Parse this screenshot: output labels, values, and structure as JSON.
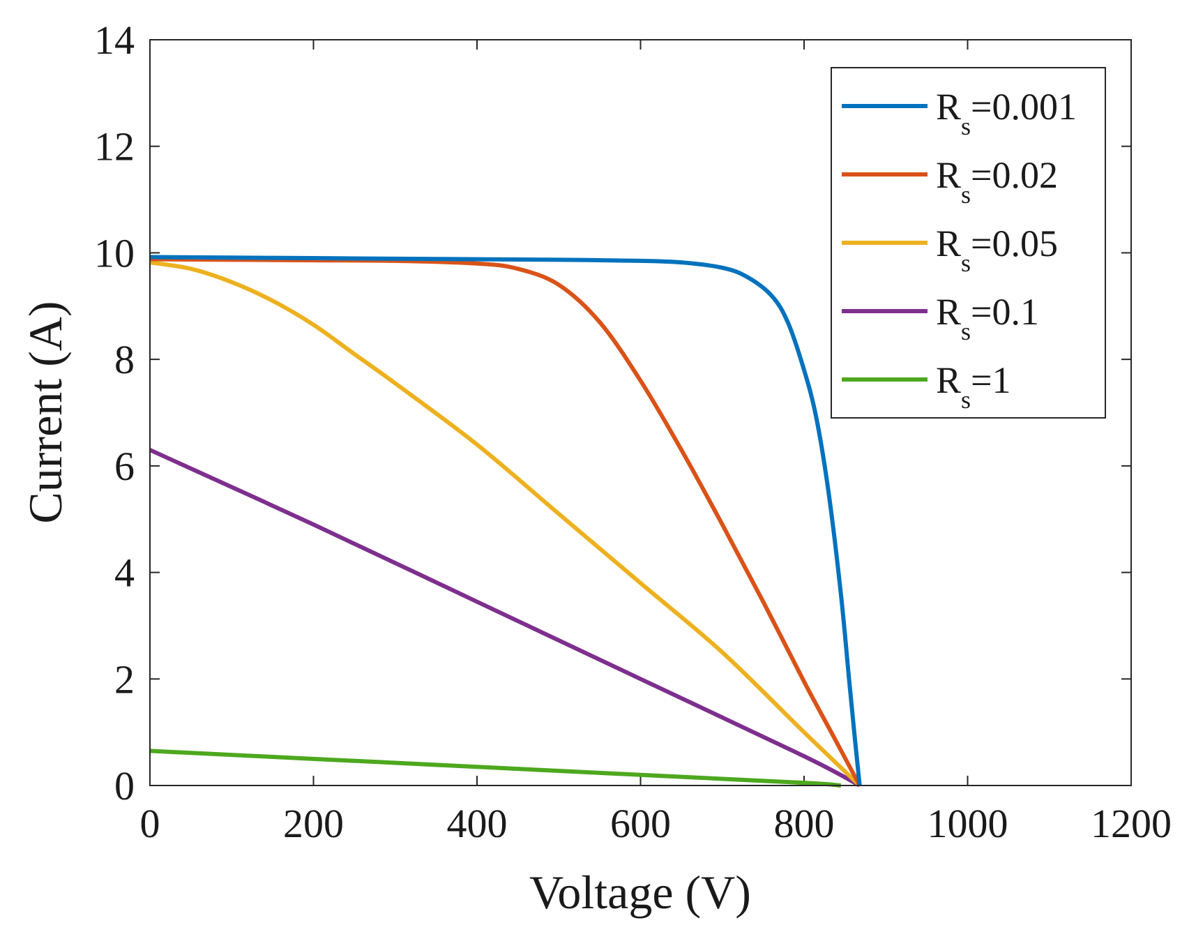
{
  "chart_data": {
    "type": "line",
    "title": "",
    "xlabel": "Voltage (V)",
    "ylabel": "Current (A)",
    "xlim": [
      0,
      1200
    ],
    "ylim": [
      0,
      14
    ],
    "xticks": [
      0,
      200,
      400,
      600,
      800,
      1000,
      1200
    ],
    "yticks": [
      0,
      2,
      4,
      6,
      8,
      10,
      12,
      14
    ],
    "grid": false,
    "legend_position": "top-right",
    "series": [
      {
        "name": "Rs=0.001",
        "label_main": "R",
        "label_sub": "s",
        "label_value": "=0.001",
        "color": "#0072BD",
        "x": [
          0,
          100,
          200,
          300,
          400,
          500,
          600,
          650,
          700,
          730,
          760,
          780,
          800,
          815,
          830,
          845,
          855,
          862,
          868
        ],
        "y": [
          9.92,
          9.91,
          9.9,
          9.89,
          9.88,
          9.87,
          9.85,
          9.82,
          9.72,
          9.55,
          9.2,
          8.7,
          7.8,
          6.9,
          5.5,
          3.6,
          2.0,
          0.9,
          0.0
        ]
      },
      {
        "name": "Rs=0.02",
        "label_main": "R",
        "label_sub": "s",
        "label_value": "=0.02",
        "color": "#D95319",
        "x": [
          0,
          100,
          200,
          300,
          400,
          450,
          500,
          550,
          600,
          650,
          700,
          750,
          800,
          835,
          868
        ],
        "y": [
          9.88,
          9.87,
          9.86,
          9.85,
          9.8,
          9.7,
          9.4,
          8.7,
          7.6,
          6.3,
          4.9,
          3.45,
          1.95,
          0.95,
          0.0
        ]
      },
      {
        "name": "Rs=0.05",
        "label_main": "R",
        "label_sub": "s",
        "label_value": "=0.05",
        "color": "#EDB120",
        "x": [
          0,
          50,
          100,
          150,
          200,
          250,
          300,
          400,
          500,
          600,
          700,
          800,
          868
        ],
        "y": [
          9.82,
          9.7,
          9.45,
          9.1,
          8.65,
          8.1,
          7.55,
          6.4,
          5.1,
          3.8,
          2.5,
          1.0,
          0.0
        ]
      },
      {
        "name": "Rs=0.1",
        "label_main": "R",
        "label_sub": "s",
        "label_value": "=0.1",
        "color": "#7E2F8E",
        "x": [
          0,
          200,
          400,
          600,
          800,
          868
        ],
        "y": [
          6.3,
          4.9,
          3.45,
          2.0,
          0.55,
          0.0
        ]
      },
      {
        "name": "Rs=1",
        "label_main": "R",
        "label_sub": "s",
        "label_value": "=1",
        "color": "#4DA81E",
        "x": [
          0,
          200,
          400,
          600,
          800,
          845
        ],
        "y": [
          0.65,
          0.5,
          0.35,
          0.2,
          0.05,
          0.0
        ]
      }
    ]
  }
}
